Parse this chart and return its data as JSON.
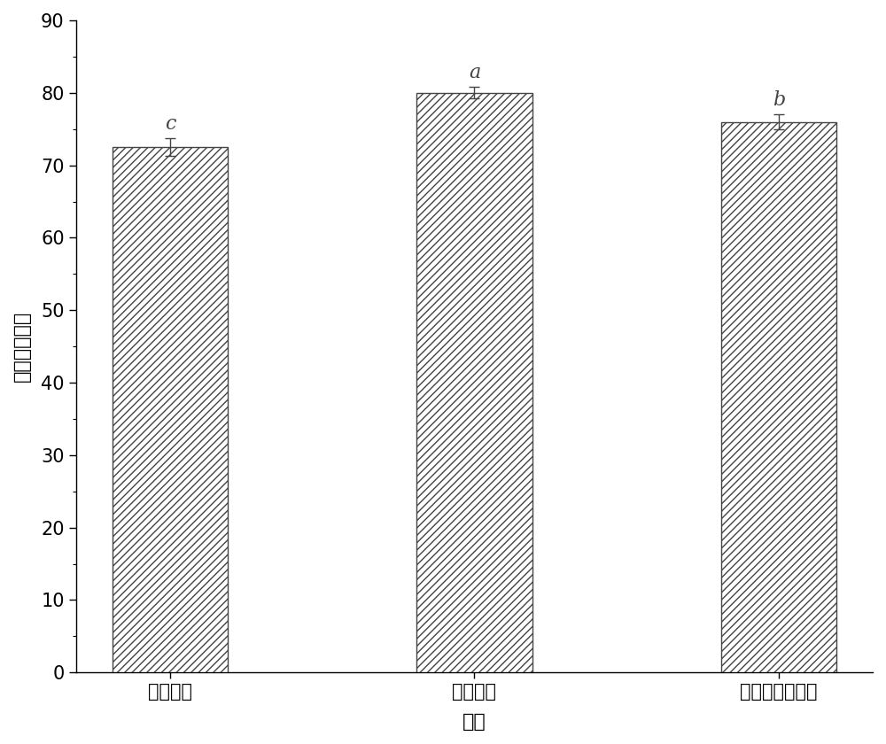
{
  "categories": [
    "杀菌工艺",
    "传统工艺",
    "一步法工艺工艺"
  ],
  "values": [
    72.5,
    80.0,
    76.0
  ],
  "errors": [
    1.2,
    0.8,
    1.0
  ],
  "significance_labels": [
    "c",
    "a",
    "b"
  ],
  "xlabel": "样品",
  "ylabel": "感官评分／分",
  "ylim": [
    0,
    90
  ],
  "yticks": [
    0,
    10,
    20,
    30,
    40,
    50,
    60,
    70,
    80,
    90
  ],
  "bar_facecolor": "#ffffff",
  "bar_edgecolor": "#444444",
  "hatch": "////",
  "bar_width": 0.38,
  "background_color": "#ffffff",
  "sig_label_fontsize": 16,
  "axis_label_fontsize": 16,
  "tick_fontsize": 15
}
